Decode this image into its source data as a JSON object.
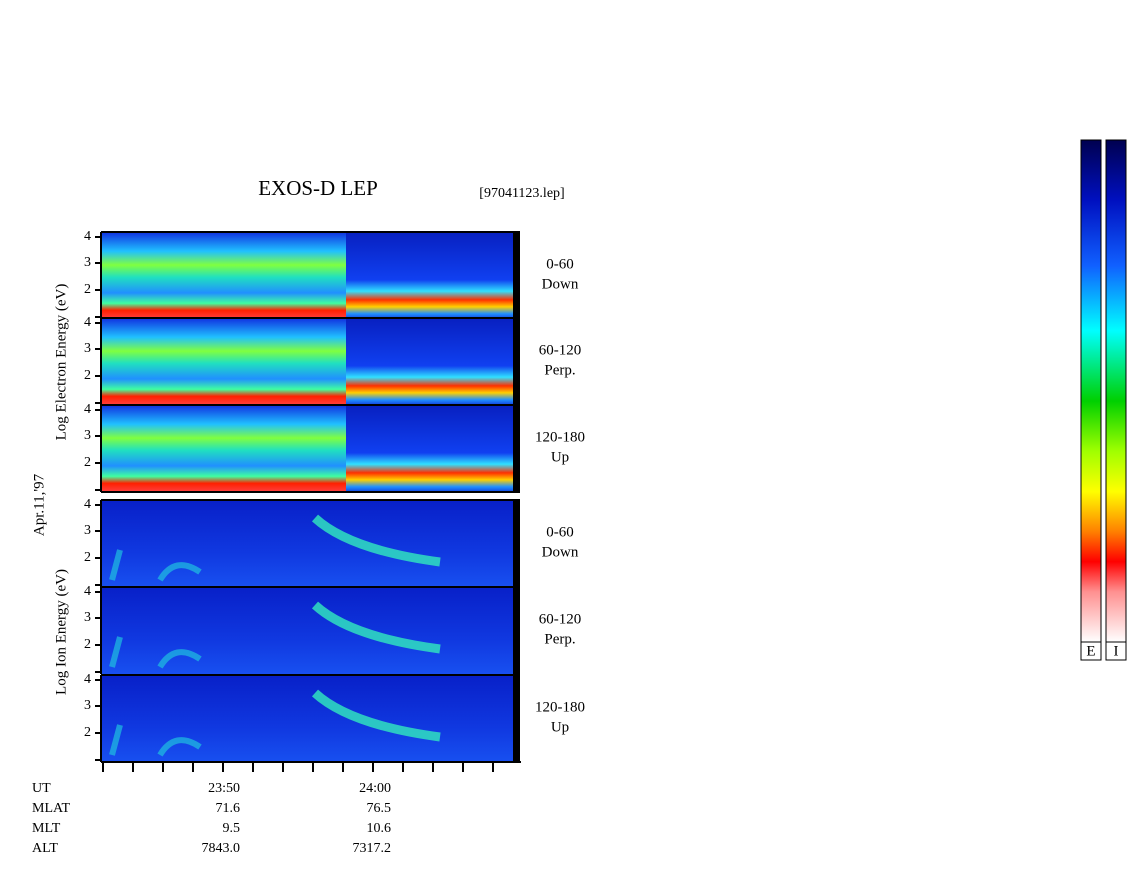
{
  "title": "EXOS-D LEP",
  "file": "[97041123.lep]",
  "date": "Apr.11,'97",
  "electron_axis_label": "Log  Electron  Energy (eV)",
  "ion_axis_label": "Log  Ion  Energy (eV)",
  "energy_ticks": [
    "4",
    "3",
    "2"
  ],
  "panels": [
    {
      "angle": "0-60",
      "direction": "Down"
    },
    {
      "angle": "60-120",
      "direction": "Perp."
    },
    {
      "angle": "120-180",
      "direction": "Up"
    },
    {
      "angle": "0-60",
      "direction": "Down"
    },
    {
      "angle": "60-120",
      "direction": "Perp."
    },
    {
      "angle": "120-180",
      "direction": "Up"
    }
  ],
  "time_ticks": [
    "23:50",
    "24:00"
  ],
  "footer": [
    {
      "label": "UT",
      "values": [
        "23:50",
        "24:00"
      ]
    },
    {
      "label": "MLAT",
      "values": [
        "71.6",
        "76.5"
      ]
    },
    {
      "label": "MLT",
      "values": [
        "9.5",
        "10.6"
      ]
    },
    {
      "label": "ALT",
      "values": [
        "7843.0",
        "7317.2"
      ]
    }
  ],
  "colorbar_labels": [
    "E",
    "I"
  ]
}
